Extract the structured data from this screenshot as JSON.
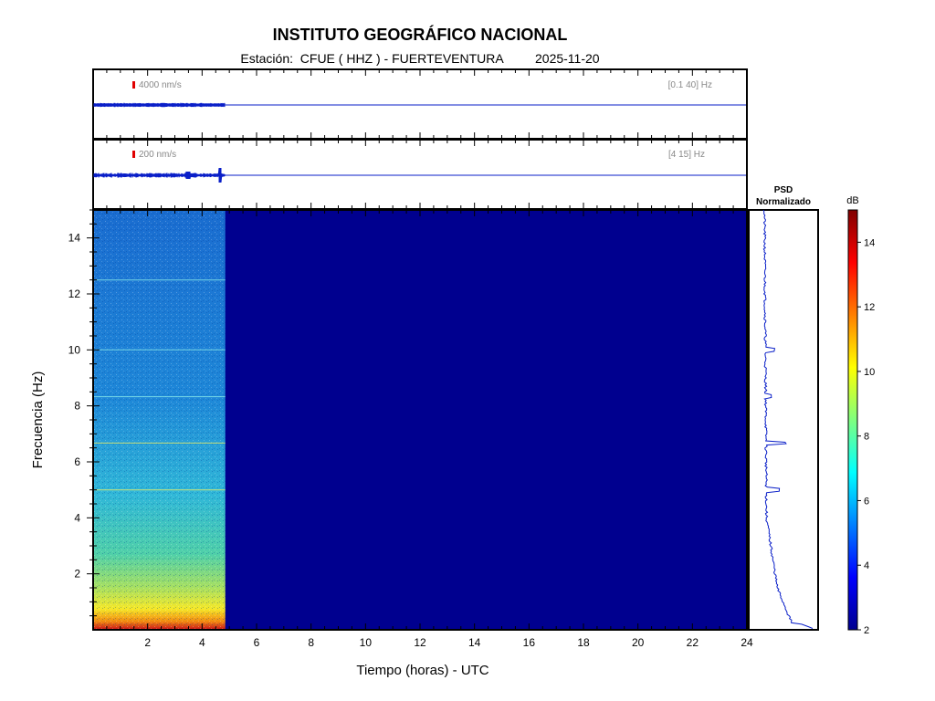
{
  "header": {
    "title": "INSTITUTO GEOGRÁFICO NACIONAL",
    "station_prefix": "Estación:",
    "station": "CFUE ( HHZ ) - FUERTEVENTURA",
    "date": "2025-11-20"
  },
  "colors": {
    "trace": "#0a1fc8",
    "scale_mark": "#e00000",
    "background_blue": "#00008f"
  },
  "chart_data": [
    {
      "type": "line",
      "panel": "trace-broadband",
      "scale_label": "4000 nm/s",
      "band_label": "[0.1 40] Hz",
      "data_end_hour": 4.85
    },
    {
      "type": "line",
      "panel": "trace-filtered",
      "scale_label": "200 nm/s",
      "band_label": "[4 15] Hz",
      "data_end_hour": 4.85
    },
    {
      "type": "heatmap",
      "panel": "spectrogram",
      "xlabel": "Tiempo (horas) - UTC",
      "ylabel": "Frecuencia  (Hz)",
      "xlim": [
        0,
        24
      ],
      "ylim": [
        0,
        15
      ],
      "x_ticks": [
        2,
        4,
        6,
        8,
        10,
        12,
        14,
        16,
        18,
        20,
        22,
        24
      ],
      "y_ticks": [
        2,
        4,
        6,
        8,
        10,
        12,
        14
      ],
      "data_end_hour": 4.85,
      "spectral_lines_hz": [
        5.0,
        6.67,
        8.33,
        10.0,
        12.5
      ]
    },
    {
      "type": "line",
      "panel": "psd",
      "title_line1": "PSD",
      "title_line2": "Normalizado",
      "peaks_hz": [
        5.0,
        6.67,
        10.0,
        8.33
      ]
    },
    {
      "type": "colorbar",
      "unit": "dB",
      "range": [
        2,
        15
      ],
      "ticks": [
        2,
        4,
        6,
        8,
        10,
        12,
        14
      ]
    }
  ]
}
